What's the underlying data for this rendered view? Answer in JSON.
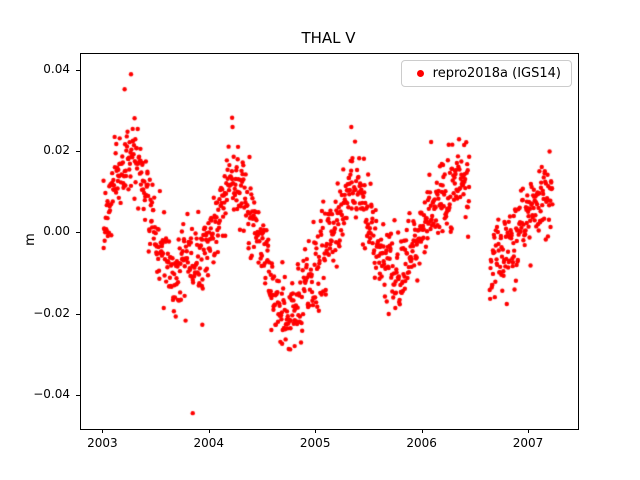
{
  "chart_data": {
    "type": "scatter",
    "title": "THAL V",
    "xlabel": "",
    "ylabel": "m",
    "xlim": [
      2002.79,
      2007.46
    ],
    "ylim": [
      -0.0482,
      0.0442
    ],
    "x_ticks": [
      2003,
      2004,
      2005,
      2006,
      2007
    ],
    "x_tick_labels": [
      "2003",
      "2004",
      "2005",
      "2006",
      "2007"
    ],
    "y_ticks": [
      -0.04,
      -0.02,
      0,
      0.02,
      0.04
    ],
    "y_tick_labels": [
      "−0.04",
      "−0.02",
      "0.00",
      "0.02",
      "0.04"
    ],
    "grid": false,
    "background": "#ffffff",
    "legend": {
      "position": "upper right",
      "entries": [
        {
          "label": "repro2018a (IGS14)",
          "marker": "dot",
          "color": "#ff0000"
        }
      ]
    },
    "marker": {
      "shape": "circle",
      "color": "#ff0000",
      "radius_px": 2.2
    },
    "series_model": {
      "description": "Dense daily GPS vertical-component scatter with annual seasonal oscillation; mean curve given by anchors [decimal_year, meters], gaussian noise around it, one data gap in 2006 and isolated extreme points.",
      "n_points": 1250,
      "x_start": 2003.0,
      "x_end": 2007.22,
      "noise_sd": 0.0048,
      "seed": 7,
      "gaps": [
        [
          2006.44,
          2006.63
        ]
      ],
      "anchors": [
        [
          2003.0,
          0.0
        ],
        [
          2003.08,
          0.01
        ],
        [
          2003.18,
          0.016
        ],
        [
          2003.28,
          0.02
        ],
        [
          2003.38,
          0.014
        ],
        [
          2003.48,
          0.002
        ],
        [
          2003.58,
          -0.007
        ],
        [
          2003.7,
          -0.01
        ],
        [
          2003.8,
          -0.008
        ],
        [
          2003.9,
          -0.007
        ],
        [
          2004.0,
          -0.002
        ],
        [
          2004.1,
          0.008
        ],
        [
          2004.22,
          0.014
        ],
        [
          2004.32,
          0.01
        ],
        [
          2004.42,
          0.002
        ],
        [
          2004.52,
          -0.006
        ],
        [
          2004.62,
          -0.015
        ],
        [
          2004.72,
          -0.02
        ],
        [
          2004.82,
          -0.018
        ],
        [
          2004.92,
          -0.013
        ],
        [
          2005.02,
          -0.008
        ],
        [
          2005.12,
          -0.002
        ],
        [
          2005.25,
          0.008
        ],
        [
          2005.35,
          0.013
        ],
        [
          2005.45,
          0.006
        ],
        [
          2005.55,
          -0.003
        ],
        [
          2005.65,
          -0.008
        ],
        [
          2005.78,
          -0.008
        ],
        [
          2005.9,
          -0.004
        ],
        [
          2006.0,
          0.001
        ],
        [
          2006.1,
          0.007
        ],
        [
          2006.22,
          0.01
        ],
        [
          2006.35,
          0.013
        ],
        [
          2006.44,
          0.012
        ],
        [
          2006.63,
          -0.009
        ],
        [
          2006.75,
          -0.006
        ],
        [
          2006.88,
          -0.001
        ],
        [
          2007.0,
          0.004
        ],
        [
          2007.1,
          0.008
        ],
        [
          2007.22,
          0.011
        ]
      ],
      "outliers": [
        [
          2003.84,
          -0.0443
        ],
        [
          2003.2,
          0.0355
        ],
        [
          2003.26,
          0.0392
        ],
        [
          2004.21,
          0.0285
        ],
        [
          2005.33,
          0.0262
        ],
        [
          2004.68,
          -0.0272
        ],
        [
          2003.93,
          -0.0225
        ],
        [
          2006.08,
          0.0225
        ]
      ]
    }
  }
}
